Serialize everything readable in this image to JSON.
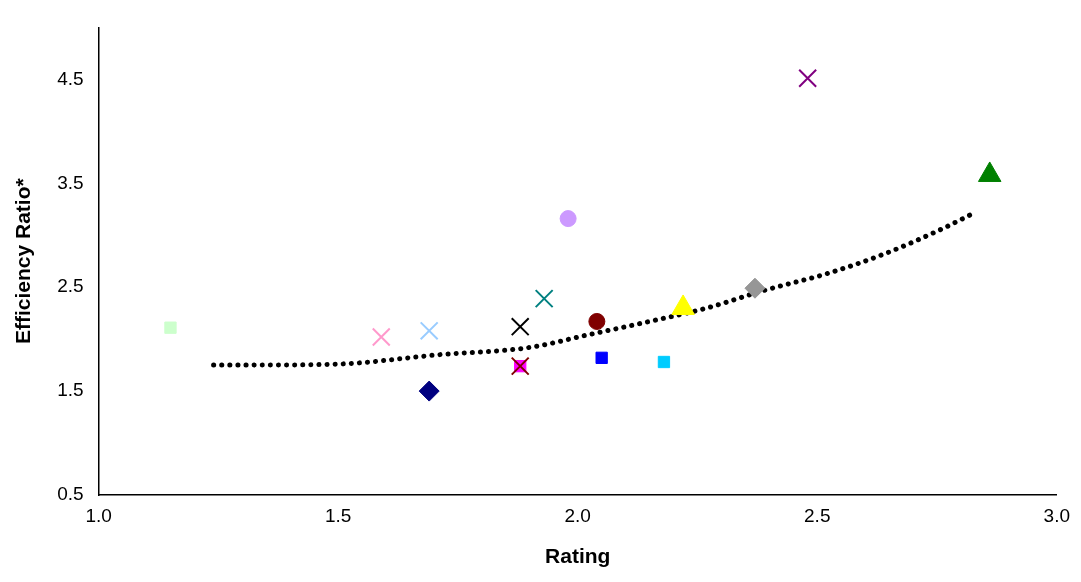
{
  "chart_data": {
    "type": "scatter",
    "xlabel": "Rating",
    "ylabel": "Efficiency Ratio*",
    "xlim": [
      1,
      3
    ],
    "xticks": [
      {
        "value": 1,
        "label": "1.0"
      },
      {
        "value": 1.5,
        "label": "1.5"
      },
      {
        "value": 2,
        "label": "2.0"
      },
      {
        "value": 2.5,
        "label": "2.5"
      },
      {
        "value": 3,
        "label": "3.0"
      }
    ],
    "ylim": [
      0.5,
      5
    ],
    "yticks": [
      0.5,
      1.5,
      2.5,
      3.5,
      4.5
    ],
    "grid": false,
    "legend": false,
    "series": [
      {
        "color": "#ccffcc",
        "marker": "square",
        "x": [
          1.15
        ],
        "values": [
          2.11
        ]
      },
      {
        "color": "#ff99cc",
        "marker": "cross",
        "x": [
          1.59
        ],
        "values": [
          2.02
        ]
      },
      {
        "color": "#99ccff",
        "marker": "cross",
        "x": [
          1.69
        ],
        "values": [
          2.08
        ]
      },
      {
        "color": "#000080",
        "marker": "diamond",
        "x": [
          1.69
        ],
        "values": [
          1.5
        ]
      },
      {
        "color": "#000000",
        "marker": "cross",
        "x": [
          1.88
        ],
        "values": [
          2.12
        ]
      },
      {
        "color": "#800000",
        "marker": "cross",
        "x": [
          1.88
        ],
        "values": [
          1.74
        ]
      },
      {
        "color": "#ff00ff",
        "marker": "square",
        "x": [
          1.88
        ],
        "values": [
          1.74
        ]
      },
      {
        "color": "#008080",
        "marker": "cross",
        "x": [
          1.93
        ],
        "values": [
          2.39
        ]
      },
      {
        "color": "#cc99ff",
        "marker": "circle",
        "x": [
          1.98
        ],
        "values": [
          3.16
        ]
      },
      {
        "color": "#800000",
        "marker": "circle",
        "x": [
          2.04
        ],
        "values": [
          2.17
        ]
      },
      {
        "color": "#0000ff",
        "marker": "square",
        "x": [
          2.05
        ],
        "values": [
          1.82
        ]
      },
      {
        "color": "#00ccff",
        "marker": "square",
        "x": [
          2.18
        ],
        "values": [
          1.78
        ]
      },
      {
        "color": "#ffff00",
        "marker": "triangle",
        "x": [
          2.22
        ],
        "values": [
          2.3
        ]
      },
      {
        "color": "#969696",
        "marker": "diamond",
        "x": [
          2.37
        ],
        "values": [
          2.49
        ]
      },
      {
        "color": "#800080",
        "marker": "cross",
        "x": [
          2.48
        ],
        "values": [
          4.51
        ]
      },
      {
        "color": "#008000",
        "marker": "triangle",
        "x": [
          2.86
        ],
        "values": [
          3.58
        ]
      },
      {
        "type": "line",
        "color": "#000000",
        "marker": "none",
        "line_style": "dotted",
        "x": [
          1.24,
          1.3,
          1.5,
          1.71,
          1.9,
          2.02,
          2.14,
          2.27,
          2.39,
          2.52,
          2.64,
          2.76,
          2.83
        ],
        "values": [
          1.75,
          1.75,
          1.76,
          1.85,
          1.92,
          2.04,
          2.16,
          2.3,
          2.47,
          2.63,
          2.82,
          3.06,
          3.22
        ]
      }
    ]
  }
}
